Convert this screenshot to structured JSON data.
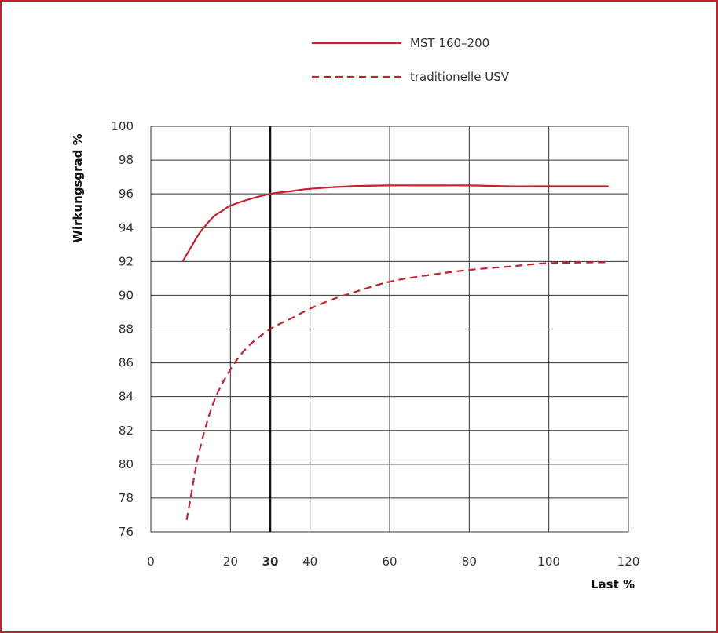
{
  "colors": {
    "frame": "#c8202e",
    "series": "#c8202e",
    "grid": "#333333",
    "marker": "#111111"
  },
  "chart_data": {
    "type": "line",
    "title": "",
    "xlabel": "Last %",
    "ylabel": "Wirkungsgrad %",
    "xlim": [
      0,
      120
    ],
    "ylim": [
      76,
      100
    ],
    "x_ticks": [
      0,
      20,
      40,
      60,
      80,
      100,
      120
    ],
    "y_ticks": [
      76,
      78,
      80,
      82,
      84,
      86,
      88,
      90,
      92,
      94,
      96,
      98,
      100
    ],
    "grid": true,
    "legend_position": "top",
    "vertical_marker": {
      "x": 30,
      "label": "30"
    },
    "series": [
      {
        "name": "MST 160–200",
        "style": "solid",
        "points": [
          [
            8,
            92.0
          ],
          [
            10,
            92.8
          ],
          [
            12,
            93.6
          ],
          [
            14,
            94.2
          ],
          [
            16,
            94.7
          ],
          [
            18,
            95.0
          ],
          [
            20,
            95.3
          ],
          [
            25,
            95.7
          ],
          [
            30,
            96.0
          ],
          [
            35,
            96.15
          ],
          [
            40,
            96.3
          ],
          [
            50,
            96.45
          ],
          [
            60,
            96.5
          ],
          [
            70,
            96.5
          ],
          [
            80,
            96.5
          ],
          [
            90,
            96.45
          ],
          [
            100,
            96.45
          ],
          [
            115,
            96.45
          ]
        ]
      },
      {
        "name": "traditionelle USV",
        "style": "dashed",
        "points": [
          [
            9,
            76.7
          ],
          [
            10,
            78.0
          ],
          [
            11,
            79.4
          ],
          [
            12,
            80.6
          ],
          [
            14,
            82.4
          ],
          [
            16,
            83.8
          ],
          [
            18,
            84.8
          ],
          [
            20,
            85.6
          ],
          [
            22,
            86.3
          ],
          [
            25,
            87.1
          ],
          [
            30,
            88.0
          ],
          [
            35,
            88.6
          ],
          [
            40,
            89.2
          ],
          [
            45,
            89.7
          ],
          [
            50,
            90.1
          ],
          [
            60,
            90.8
          ],
          [
            70,
            91.2
          ],
          [
            80,
            91.5
          ],
          [
            90,
            91.7
          ],
          [
            100,
            91.9
          ],
          [
            115,
            91.95
          ]
        ]
      }
    ]
  }
}
